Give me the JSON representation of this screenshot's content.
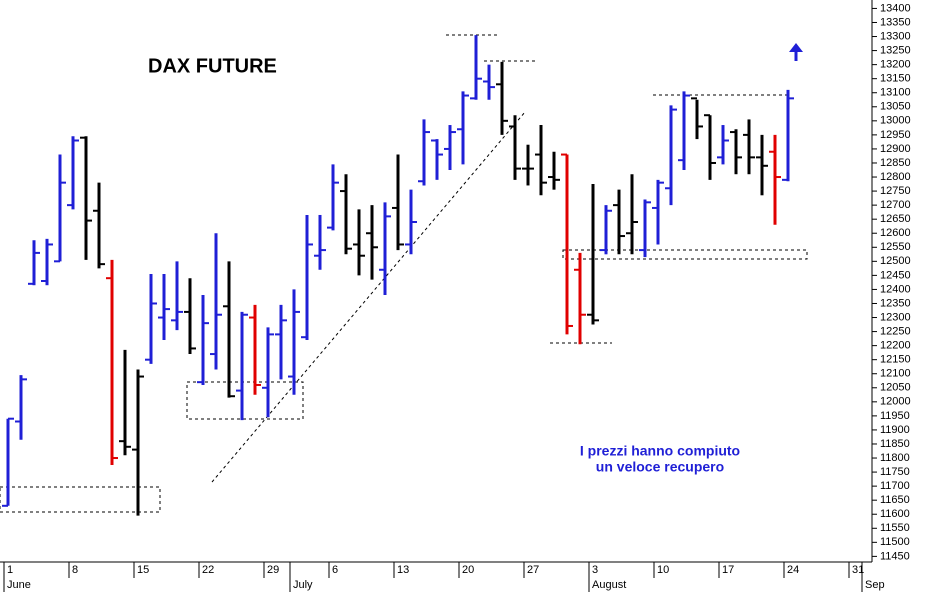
{
  "chart_data": {
    "type": "ohlc",
    "title": "DAX FUTURE",
    "annotations": [
      "I prezzi hanno compiuto",
      "un veloce recupero"
    ],
    "categories": [
      "1",
      null,
      null,
      null,
      null,
      "8",
      null,
      null,
      null,
      null,
      "15",
      null,
      null,
      null,
      null,
      "22",
      null,
      null,
      null,
      null,
      "29",
      null,
      null,
      null,
      null,
      "6",
      null,
      null,
      null,
      null,
      "13",
      null,
      null,
      null,
      null,
      "20",
      null,
      null,
      null,
      null,
      "27",
      null,
      null,
      null,
      null,
      "3",
      null,
      null,
      null,
      null,
      "10",
      null,
      null,
      null,
      null,
      "17",
      null,
      null,
      null,
      null,
      "24",
      null,
      null,
      null,
      null,
      "31",
      null
    ],
    "months": [
      {
        "label": "June",
        "category": 0
      },
      {
        "label": "July",
        "category": 22
      },
      {
        "label": "August",
        "category": 45
      },
      {
        "label": "Sep",
        "category": 66
      }
    ],
    "open": [
      11630,
      11930,
      12420,
      12430,
      12500,
      12700,
      12940,
      12680,
      12440,
      11860,
      11830,
      12150,
      12300,
      12290,
      12320,
      12070,
      12170,
      12340,
      12040,
      12300,
      12050,
      12240,
      12090,
      12230,
      12520,
      12620,
      12750,
      12560,
      12600,
      12470,
      12690,
      12560,
      12785,
      12930,
      12900,
      12970,
      13080,
      13140,
      13130,
      12980,
      12830,
      12880,
      12800,
      12880,
      12470,
      12310,
      12540,
      12700,
      12600,
      12540,
      12690,
      12760,
      12860,
      13080,
      13020,
      12870,
      12960,
      12950,
      12870,
      12890,
      12790,
      null,
      null,
      null,
      null,
      null,
      null
    ],
    "high": [
      11940,
      12095,
      12575,
      12580,
      12880,
      12945,
      12945,
      12780,
      12505,
      12185,
      12115,
      12455,
      12455,
      12500,
      12440,
      12380,
      12600,
      12500,
      12320,
      12345,
      12265,
      12345,
      12400,
      12665,
      12665,
      12845,
      12810,
      12685,
      12700,
      12710,
      12880,
      12755,
      13005,
      12935,
      12985,
      13105,
      13305,
      13200,
      13210,
      13020,
      12915,
      12985,
      12890,
      12880,
      12530,
      12775,
      12700,
      12755,
      12810,
      12720,
      12790,
      13055,
      13105,
      13075,
      13020,
      12985,
      12970,
      13005,
      12950,
      12950,
      13110,
      null,
      null,
      null,
      null,
      null,
      null
    ],
    "low": [
      11630,
      11865,
      12415,
      12415,
      12500,
      12685,
      12505,
      12475,
      11775,
      11810,
      11595,
      12135,
      12220,
      12255,
      12170,
      12060,
      12115,
      12015,
      11935,
      12025,
      11945,
      12080,
      12025,
      12220,
      12470,
      12610,
      12525,
      12450,
      12435,
      12380,
      12540,
      12525,
      12770,
      12790,
      12825,
      12845,
      13075,
      13075,
      12950,
      12790,
      12770,
      12735,
      12755,
      12240,
      12205,
      12275,
      12525,
      12525,
      12525,
      12515,
      12560,
      12700,
      12825,
      12935,
      12790,
      12845,
      12810,
      12810,
      12735,
      12630,
      12785,
      null,
      null,
      null,
      null,
      null,
      null
    ],
    "close": [
      11940,
      12080,
      12530,
      12560,
      12780,
      12930,
      12645,
      12490,
      11800,
      11840,
      12090,
      12350,
      12330,
      12320,
      12190,
      12280,
      12310,
      12020,
      12310,
      12060,
      12240,
      12290,
      12320,
      12560,
      12540,
      12780,
      12545,
      12520,
      12550,
      12660,
      12560,
      12640,
      12960,
      12880,
      12960,
      13090,
      13150,
      13120,
      13000,
      12830,
      12830,
      12780,
      12790,
      12270,
      12310,
      12290,
      12680,
      12590,
      12640,
      12710,
      12780,
      13040,
      13090,
      12980,
      12850,
      12930,
      12870,
      12870,
      12840,
      12800,
      13080,
      null,
      null,
      null,
      null,
      null,
      null
    ],
    "colors": [
      "#1f1fd6",
      "#1f1fd6",
      "#1f1fd6",
      "#1f1fd6",
      "#1f1fd6",
      "#1f1fd6",
      "#000000",
      "#000000",
      "#e00000",
      "#000000",
      "#000000",
      "#1f1fd6",
      "#1f1fd6",
      "#1f1fd6",
      "#000000",
      "#1f1fd6",
      "#1f1fd6",
      "#000000",
      "#1f1fd6",
      "#e00000",
      "#1f1fd6",
      "#1f1fd6",
      "#1f1fd6",
      "#1f1fd6",
      "#1f1fd6",
      "#1f1fd6",
      "#000000",
      "#000000",
      "#000000",
      "#1f1fd6",
      "#000000",
      "#1f1fd6",
      "#1f1fd6",
      "#1f1fd6",
      "#1f1fd6",
      "#1f1fd6",
      "#1f1fd6",
      "#1f1fd6",
      "#000000",
      "#000000",
      "#000000",
      "#000000",
      "#000000",
      "#e00000",
      "#e00000",
      "#000000",
      "#1f1fd6",
      "#000000",
      "#000000",
      "#1f1fd6",
      "#1f1fd6",
      "#1f1fd6",
      "#1f1fd6",
      "#000000",
      "#000000",
      "#1f1fd6",
      "#000000",
      "#000000",
      "#000000",
      "#e00000",
      "#1f1fd6",
      null,
      null,
      null,
      null,
      null,
      null
    ],
    "ylim": [
      11430,
      13430
    ],
    "yticks": [
      11450,
      11500,
      11550,
      11600,
      11650,
      11700,
      11750,
      11800,
      11850,
      11900,
      11950,
      12000,
      12050,
      12100,
      12150,
      12200,
      12250,
      12300,
      12350,
      12400,
      12450,
      12500,
      12550,
      12600,
      12650,
      12700,
      12750,
      12800,
      12850,
      12900,
      12950,
      13000,
      13050,
      13100,
      13150,
      13200,
      13250,
      13300,
      13350,
      13400
    ],
    "grid": false
  }
}
